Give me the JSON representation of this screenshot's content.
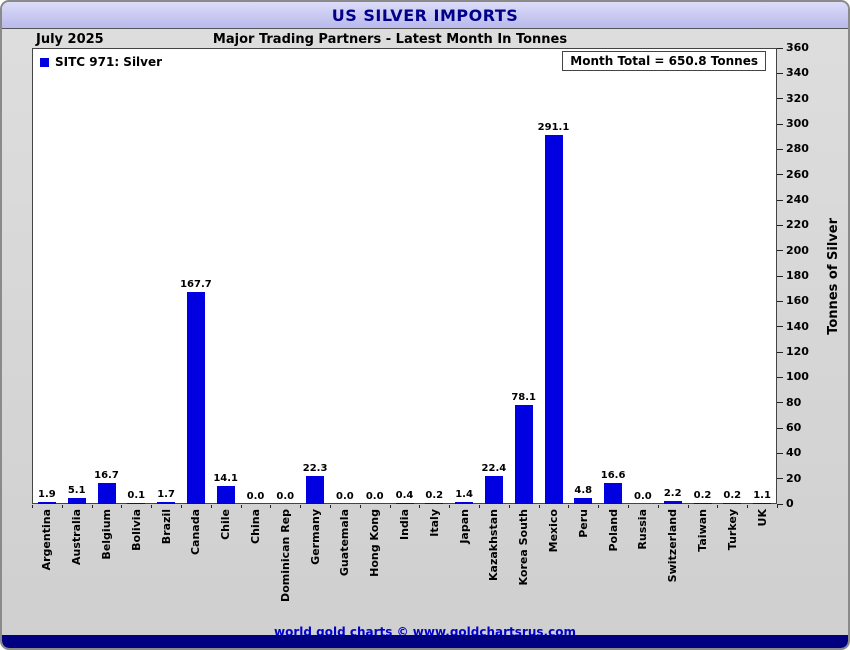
{
  "window": {
    "title": "US SILVER IMPORTS"
  },
  "header": {
    "date_label": "July 2025",
    "subtitle": "Major Trading Partners - Latest Month In Tonnes"
  },
  "legend": {
    "label": "SITC 971: Silver"
  },
  "month_total": "Month Total = 650.8 Tonnes",
  "footer": {
    "credit": "world gold charts © www.goldchartsrus.com"
  },
  "chart_data": {
    "type": "bar",
    "title": "US SILVER IMPORTS",
    "subtitle": "Major Trading Partners - Latest Month In Tonnes",
    "date": "July 2025",
    "month_total": 650.8,
    "legend": "SITC 971: Silver",
    "legend_position": "top-left",
    "xlabel": "",
    "ylabel": "Tonnes of Silver",
    "ylim": [
      0,
      360
    ],
    "ytick_step": 20,
    "yaxis_side": "right",
    "grid": false,
    "bar_color": "#0000e0",
    "categories": [
      "Argentina",
      "Australia",
      "Belgium",
      "Bolivia",
      "Brazil",
      "Canada",
      "Chile",
      "China",
      "Dominican Rep",
      "Germany",
      "Guatemala",
      "Hong Kong",
      "India",
      "Italy",
      "Japan",
      "Kazakhstan",
      "Korea South",
      "Mexico",
      "Peru",
      "Poland",
      "Russia",
      "Switzerland",
      "Taiwan",
      "Turkey",
      "UK"
    ],
    "values": [
      1.9,
      5.1,
      16.7,
      0.1,
      1.7,
      167.7,
      14.1,
      0.0,
      0.0,
      22.3,
      0.0,
      0.0,
      0.4,
      0.2,
      1.4,
      22.4,
      78.1,
      291.1,
      4.8,
      16.6,
      0.0,
      2.2,
      0.2,
      0.2,
      1.1
    ]
  }
}
